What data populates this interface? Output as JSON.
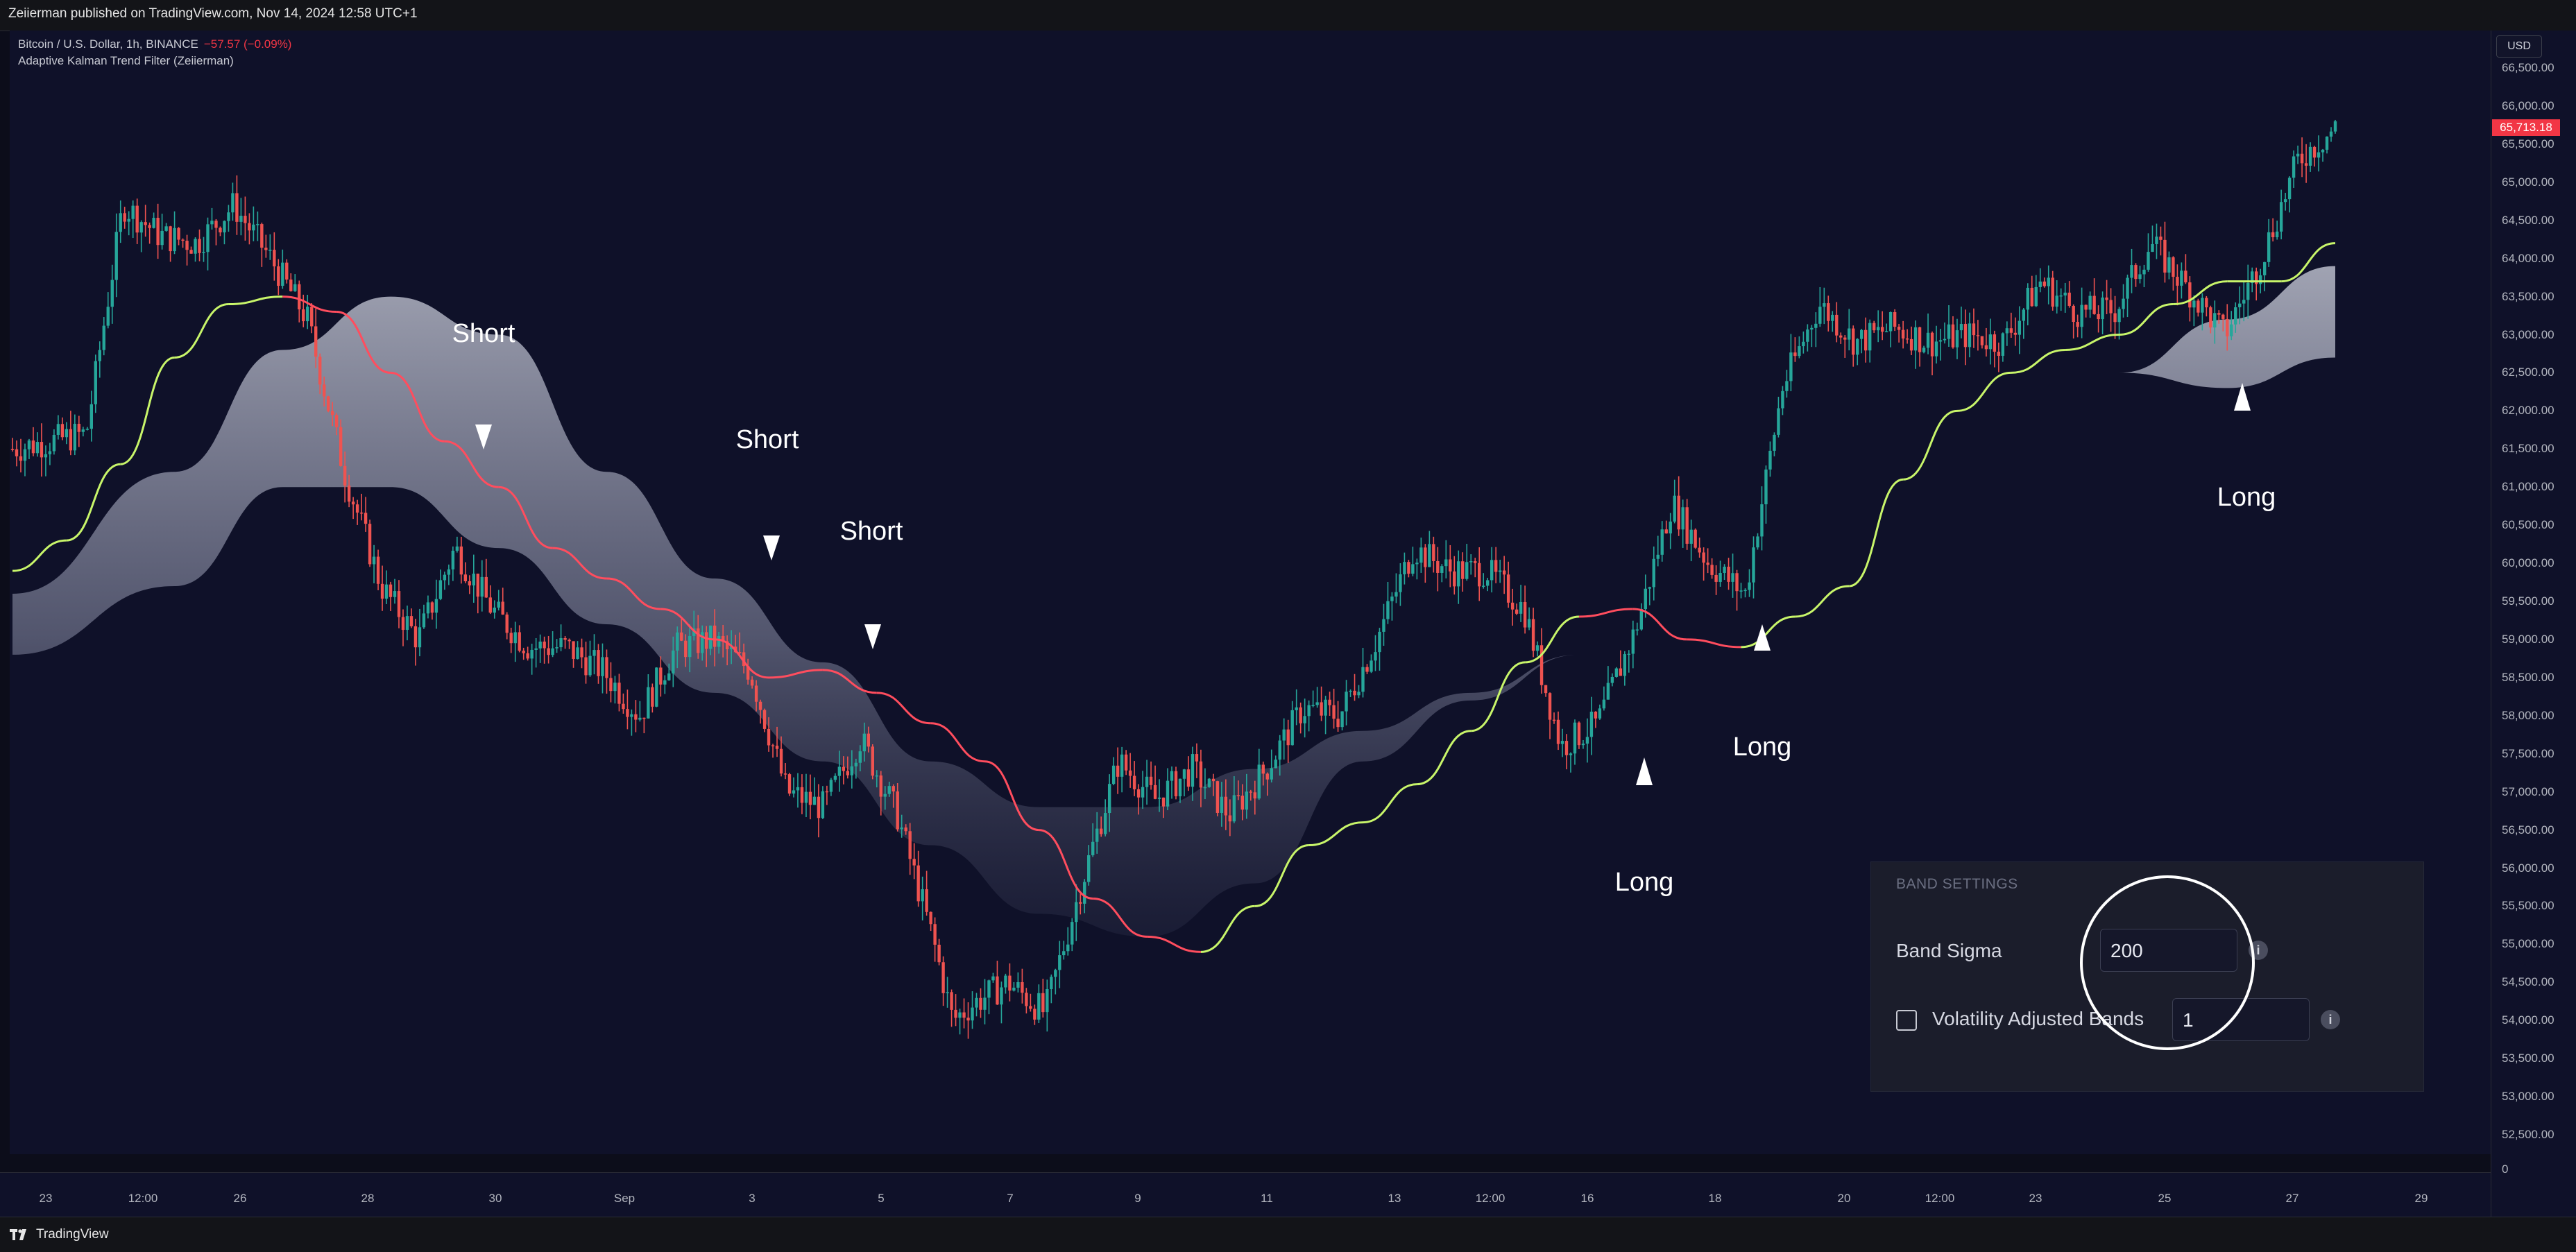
{
  "topbar": {
    "published": "Zeiierman published on TradingView.com, Nov 14, 2024 12:58 UTC+1"
  },
  "legend": {
    "symbol": "Bitcoin / U.S. Dollar, 1h, BINANCE",
    "change": "−57.57 (−0.09%)",
    "indicator": "Adaptive Kalman Trend Filter (Zeiierman)"
  },
  "price_scale": {
    "currency": "USD",
    "last_price": "65,713.18",
    "last_color": "#f23645",
    "ticks": [
      "66,500.00",
      "66,000.00",
      "65,500.00",
      "65,000.00",
      "64,500.00",
      "64,000.00",
      "63,500.00",
      "63,000.00",
      "62,500.00",
      "62,000.00",
      "61,500.00",
      "61,000.00",
      "60,500.00",
      "60,000.00",
      "59,500.00",
      "59,000.00",
      "58,500.00",
      "58,000.00",
      "57,500.00",
      "57,000.00",
      "56,500.00",
      "56,000.00",
      "55,500.00",
      "55,000.00",
      "54,500.00",
      "54,000.00",
      "53,500.00",
      "53,000.00",
      "52,500.00",
      "0"
    ]
  },
  "time_scale": {
    "ticks": [
      "23",
      "12:00",
      "26",
      "28",
      "30",
      "Sep",
      "3",
      "5",
      "7",
      "9",
      "11",
      "13",
      "12:00",
      "16",
      "18",
      "20",
      "12:00",
      "23",
      "25",
      "27",
      "29"
    ]
  },
  "bottombar": {
    "brand": "TradingView"
  },
  "annotations": [
    "Short",
    "Short",
    "Short",
    "Long",
    "Long",
    "Long"
  ],
  "settings": {
    "section_title": "BAND SETTINGS",
    "band_sigma_label": "Band Sigma",
    "band_sigma_value": "200",
    "volatility_label": "Volatility Adjusted Bands",
    "volatility_checked": false,
    "volatility_value": "1",
    "info_icon": "i"
  },
  "colors": {
    "background": "#0f1129",
    "candle_up": "#26a69a",
    "candle_down": "#ef5350",
    "trend_bull": "#c8f56a",
    "trend_bear": "#ff4d5e",
    "band": "#b8bccf"
  },
  "chart_data": {
    "type": "candlestick",
    "title": "Bitcoin / U.S. Dollar, 1h, BINANCE",
    "xlabel": "",
    "ylabel": "",
    "ylim": [
      52200,
      66800
    ],
    "grid": false,
    "x_ticks": [
      "23",
      "12:00",
      "26",
      "28",
      "30",
      "Sep",
      "3",
      "5",
      "7",
      "9",
      "11",
      "13",
      "12:00",
      "16",
      "18",
      "20",
      "12:00",
      "23",
      "25",
      "27",
      "29"
    ],
    "price_path": [
      [
        0,
        61500
      ],
      [
        2,
        61700
      ],
      [
        3,
        64700
      ],
      [
        4,
        64300
      ],
      [
        5,
        64200
      ],
      [
        6,
        64700
      ],
      [
        7,
        64000
      ],
      [
        8,
        63200
      ],
      [
        9,
        61200
      ],
      [
        10,
        59700
      ],
      [
        11,
        59000
      ],
      [
        12,
        60200
      ],
      [
        13,
        59400
      ],
      [
        14,
        58900
      ],
      [
        15,
        58900
      ],
      [
        16,
        58600
      ],
      [
        17,
        58000
      ],
      [
        18,
        58900
      ],
      [
        19,
        59000
      ],
      [
        20,
        58600
      ],
      [
        21,
        57000
      ],
      [
        22,
        56800
      ],
      [
        23,
        57700
      ],
      [
        24,
        56700
      ],
      [
        25,
        55000
      ],
      [
        25.5,
        54000
      ],
      [
        26,
        54200
      ],
      [
        27,
        54500
      ],
      [
        28,
        54100
      ],
      [
        29,
        55800
      ],
      [
        30,
        57400
      ],
      [
        31,
        56900
      ],
      [
        32,
        57300
      ],
      [
        33,
        56700
      ],
      [
        34,
        57300
      ],
      [
        35,
        58100
      ],
      [
        36,
        58000
      ],
      [
        37,
        59000
      ],
      [
        38,
        60200
      ],
      [
        39,
        59900
      ],
      [
        40,
        59900
      ],
      [
        41,
        59400
      ],
      [
        42,
        57600
      ],
      [
        43,
        57900
      ],
      [
        44,
        59100
      ],
      [
        45,
        60800
      ],
      [
        46,
        60000
      ],
      [
        47,
        59600
      ],
      [
        48,
        62300
      ],
      [
        49,
        63400
      ],
      [
        50,
        62900
      ],
      [
        51,
        63100
      ],
      [
        52,
        62900
      ],
      [
        53,
        63000
      ],
      [
        54,
        62900
      ],
      [
        55,
        63700
      ],
      [
        56,
        63300
      ],
      [
        57,
        63300
      ],
      [
        58,
        64200
      ],
      [
        59,
        63600
      ],
      [
        60,
        63000
      ],
      [
        61,
        64000
      ],
      [
        62,
        65300
      ],
      [
        63,
        65713
      ]
    ],
    "bull_segments": [
      [
        0,
        61500,
        65713
      ]
    ],
    "trend_line": [
      [
        0,
        59900
      ],
      [
        1,
        60300
      ],
      [
        2,
        61300
      ],
      [
        3,
        62700
      ],
      [
        4,
        63400
      ],
      [
        5,
        63500
      ],
      [
        6,
        63300
      ],
      [
        7,
        62500
      ],
      [
        8,
        61600
      ],
      [
        9,
        61000
      ],
      [
        10,
        60200
      ],
      [
        11,
        59800
      ],
      [
        12,
        59400
      ],
      [
        13,
        59000
      ],
      [
        14,
        58500
      ],
      [
        15,
        58600
      ],
      [
        16,
        58300
      ],
      [
        17,
        57900
      ],
      [
        18,
        57400
      ],
      [
        19,
        56500
      ],
      [
        20,
        55600
      ],
      [
        21,
        55100
      ],
      [
        22,
        54900
      ],
      [
        23,
        55500
      ],
      [
        24,
        56300
      ],
      [
        25,
        56600
      ],
      [
        26,
        57100
      ],
      [
        27,
        57800
      ],
      [
        28,
        58700
      ],
      [
        29,
        59300
      ],
      [
        30,
        59400
      ],
      [
        31,
        59000
      ],
      [
        32,
        58900
      ],
      [
        33,
        59300
      ],
      [
        34,
        59700
      ],
      [
        35,
        61100
      ],
      [
        36,
        62000
      ],
      [
        37,
        62500
      ],
      [
        38,
        62800
      ],
      [
        39,
        63000
      ],
      [
        40,
        63400
      ],
      [
        41,
        63700
      ],
      [
        42,
        63700
      ],
      [
        43,
        64200
      ]
    ],
    "trend_bear_ranges": [
      [
        5,
        22
      ],
      [
        29,
        32
      ]
    ],
    "band_upper": [
      [
        0,
        59600
      ],
      [
        3,
        61200
      ],
      [
        5,
        62800
      ],
      [
        7,
        63500
      ],
      [
        9,
        63000
      ],
      [
        11,
        61200
      ],
      [
        13,
        59800
      ],
      [
        15,
        58700
      ],
      [
        17,
        57400
      ],
      [
        19,
        56800
      ],
      [
        21,
        56800
      ],
      [
        23,
        57300
      ],
      [
        25,
        57800
      ],
      [
        27,
        58300
      ],
      [
        29,
        58800
      ],
      [
        31,
        59400
      ],
      [
        33,
        60200
      ],
      [
        35,
        61000
      ],
      [
        37,
        61800
      ],
      [
        39,
        62500
      ],
      [
        41,
        63200
      ],
      [
        43,
        63900
      ]
    ],
    "band_lower": [
      [
        0,
        58800
      ],
      [
        3,
        59700
      ],
      [
        5,
        61000
      ],
      [
        7,
        61000
      ],
      [
        9,
        60200
      ],
      [
        11,
        59200
      ],
      [
        13,
        58300
      ],
      [
        15,
        57400
      ],
      [
        17,
        56300
      ],
      [
        19,
        55400
      ],
      [
        21,
        55100
      ],
      [
        23,
        55800
      ],
      [
        25,
        57400
      ],
      [
        27,
        58200
      ],
      [
        29,
        58800
      ],
      [
        31,
        59400
      ],
      [
        33,
        60200
      ],
      [
        35,
        61000
      ],
      [
        37,
        61800
      ],
      [
        39,
        62500
      ],
      [
        41,
        62300
      ],
      [
        43,
        62700
      ]
    ]
  }
}
